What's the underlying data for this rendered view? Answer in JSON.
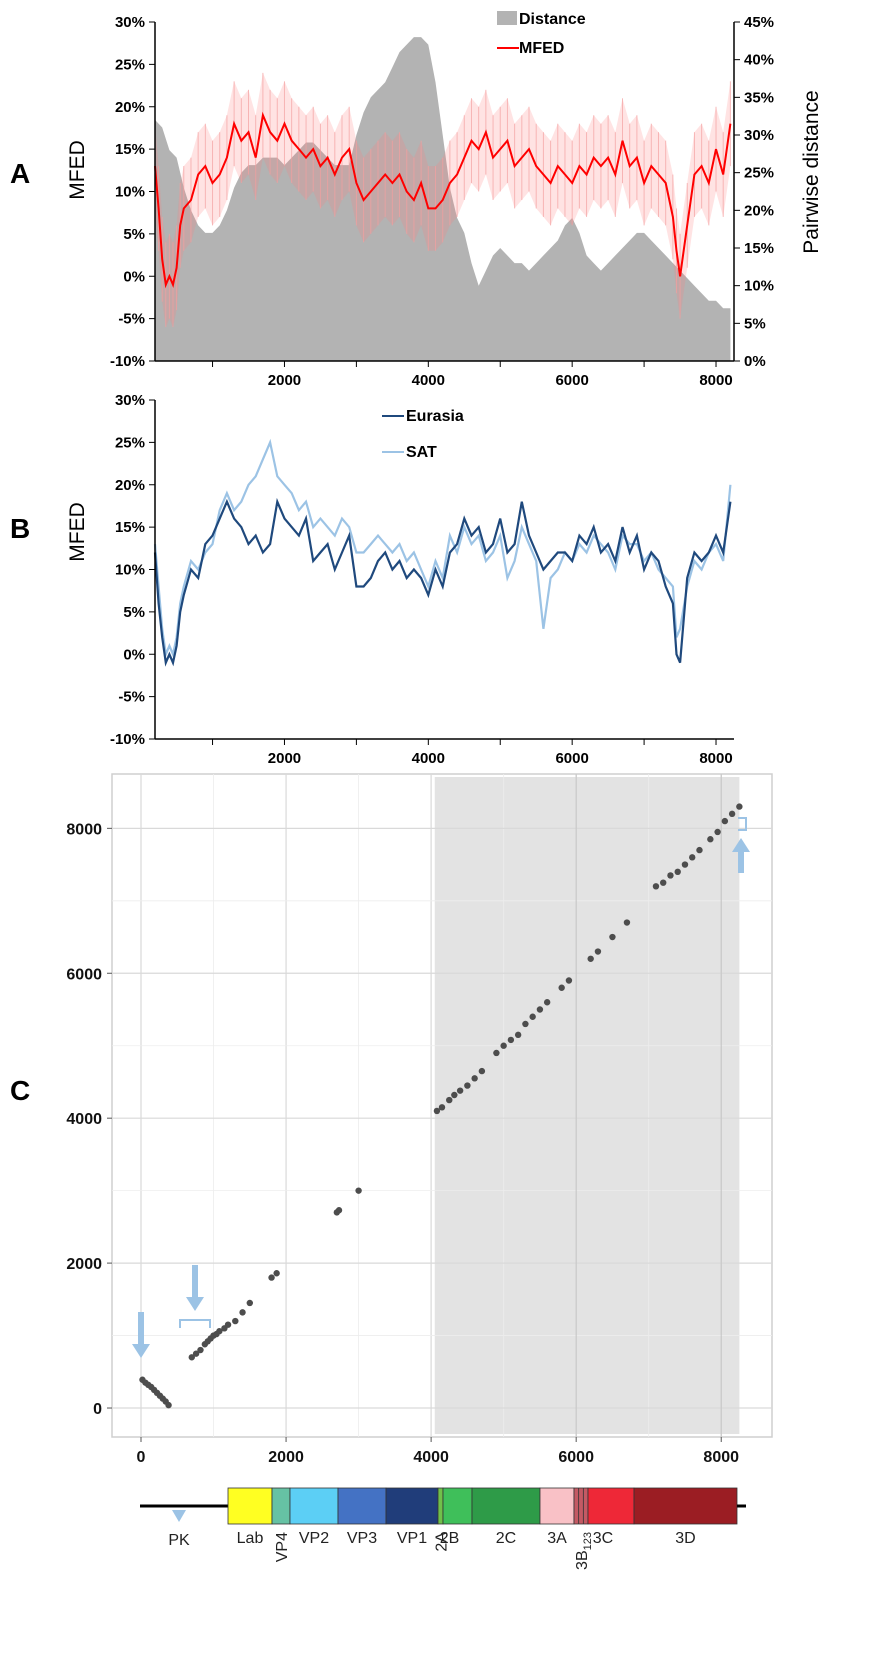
{
  "panels": {
    "a": "A",
    "b": "B",
    "c": "C"
  },
  "chart_data": [
    {
      "type": "area+line",
      "panel": "A",
      "ylabel_left": "MFED",
      "ylabel_right": "Pairwise distance",
      "ylim_left": [
        -10,
        30
      ],
      "ylim_right": [
        0,
        45
      ],
      "left_ticks": [
        "-10%",
        "-5%",
        "0%",
        "5%",
        "10%",
        "15%",
        "20%",
        "25%",
        "30%"
      ],
      "right_ticks": [
        "0%",
        "5%",
        "10%",
        "15%",
        "20%",
        "25%",
        "30%",
        "35%",
        "40%",
        "45%"
      ],
      "x_ticks": [
        "2000",
        "4000",
        "6000",
        "8000"
      ],
      "xlim": [
        200,
        8250
      ],
      "legend": [
        {
          "name": "Distance",
          "color": "#b3b3b3"
        },
        {
          "name": "MFED",
          "color": "#ff0000"
        }
      ],
      "series": [
        {
          "name": "Distance",
          "axis": "right",
          "color": "#b3b3b3",
          "x": [
            200,
            300,
            400,
            500,
            600,
            700,
            800,
            900,
            1000,
            1100,
            1200,
            1300,
            1400,
            1500,
            1600,
            1700,
            1800,
            1900,
            2000,
            2100,
            2200,
            2300,
            2400,
            2500,
            2600,
            2700,
            2800,
            2900,
            3000,
            3100,
            3200,
            3300,
            3400,
            3500,
            3600,
            3700,
            3800,
            3900,
            4000,
            4100,
            4200,
            4300,
            4400,
            4500,
            4600,
            4700,
            4800,
            4900,
            5000,
            5100,
            5200,
            5300,
            5400,
            5500,
            5600,
            5700,
            5800,
            5900,
            6000,
            6100,
            6200,
            6300,
            6400,
            6500,
            6600,
            6700,
            6800,
            6900,
            7000,
            7100,
            7200,
            7300,
            7400,
            7500,
            7600,
            7700,
            7800,
            7900,
            8000,
            8100,
            8200
          ],
          "values": [
            32,
            31,
            28,
            27,
            23,
            20,
            18,
            17,
            17,
            18,
            20,
            23,
            25,
            26,
            26,
            27,
            27,
            27,
            26,
            27,
            28,
            29,
            29,
            28,
            27,
            26,
            26,
            26,
            30,
            33,
            35,
            36,
            37,
            39,
            41,
            42,
            43,
            43,
            42,
            37,
            30,
            23,
            19,
            17,
            13,
            10,
            12,
            14,
            15,
            14,
            13,
            13,
            12,
            13,
            14,
            15,
            16,
            18,
            19,
            17,
            14,
            13,
            12,
            13,
            14,
            15,
            16,
            17,
            17,
            16,
            15,
            14,
            13,
            12,
            11,
            10,
            9,
            8,
            8,
            7,
            7
          ]
        },
        {
          "name": "MFED",
          "axis": "left",
          "color": "#ff0000",
          "x": [
            200,
            250,
            300,
            350,
            400,
            450,
            500,
            550,
            600,
            700,
            800,
            900,
            1000,
            1100,
            1200,
            1300,
            1400,
            1500,
            1600,
            1700,
            1800,
            1900,
            2000,
            2100,
            2200,
            2300,
            2400,
            2500,
            2600,
            2700,
            2800,
            2900,
            3000,
            3100,
            3200,
            3300,
            3400,
            3500,
            3600,
            3700,
            3800,
            3900,
            4000,
            4100,
            4200,
            4300,
            4400,
            4500,
            4600,
            4700,
            4800,
            4900,
            5000,
            5100,
            5200,
            5300,
            5400,
            5500,
            5600,
            5700,
            5800,
            5900,
            6000,
            6100,
            6200,
            6300,
            6400,
            6500,
            6600,
            6700,
            6800,
            6900,
            7000,
            7100,
            7200,
            7300,
            7400,
            7450,
            7500,
            7600,
            7700,
            7800,
            7900,
            8000,
            8100,
            8200
          ],
          "values": [
            13,
            8,
            2,
            -1,
            0,
            -1,
            1,
            6,
            8,
            9,
            12,
            13,
            11,
            12,
            14,
            18,
            16,
            17,
            14,
            19,
            17,
            16,
            18,
            16,
            15,
            14,
            15,
            13,
            14,
            12,
            14,
            15,
            11,
            9,
            10,
            11,
            12,
            11,
            12,
            10,
            9,
            11,
            8,
            8,
            9,
            11,
            12,
            14,
            16,
            15,
            17,
            14,
            15,
            16,
            13,
            14,
            15,
            13,
            12,
            11,
            13,
            12,
            11,
            13,
            12,
            14,
            13,
            14,
            12,
            16,
            13,
            14,
            11,
            13,
            12,
            11,
            7,
            3,
            0,
            6,
            12,
            13,
            11,
            15,
            12,
            18
          ]
        }
      ]
    },
    {
      "type": "line",
      "panel": "B",
      "ylabel": "MFED",
      "ylim": [
        -10,
        30
      ],
      "y_ticks": [
        "-10%",
        "-5%",
        "0%",
        "5%",
        "10%",
        "15%",
        "20%",
        "25%",
        "30%"
      ],
      "x_ticks": [
        "2000",
        "4000",
        "6000",
        "8000"
      ],
      "xlim": [
        200,
        8250
      ],
      "series": [
        {
          "name": "Eurasia",
          "color": "#1f497d",
          "x": [
            200,
            250,
            300,
            350,
            400,
            450,
            500,
            550,
            600,
            700,
            800,
            900,
            1000,
            1100,
            1200,
            1300,
            1400,
            1500,
            1600,
            1700,
            1800,
            1900,
            2000,
            2100,
            2200,
            2300,
            2400,
            2500,
            2600,
            2700,
            2800,
            2900,
            3000,
            3100,
            3200,
            3300,
            3400,
            3500,
            3600,
            3700,
            3800,
            3900,
            4000,
            4100,
            4200,
            4300,
            4400,
            4500,
            4600,
            4700,
            4800,
            4900,
            5000,
            5100,
            5200,
            5300,
            5400,
            5500,
            5600,
            5700,
            5800,
            5900,
            6000,
            6100,
            6200,
            6300,
            6400,
            6500,
            6600,
            6700,
            6800,
            6900,
            7000,
            7100,
            7200,
            7300,
            7400,
            7450,
            7500,
            7600,
            7700,
            7800,
            7900,
            8000,
            8100,
            8200
          ],
          "values": [
            12,
            6,
            2,
            -1,
            0,
            -1,
            1,
            5,
            7,
            10,
            9,
            13,
            14,
            16,
            18,
            16,
            15,
            13,
            14,
            12,
            13,
            18,
            16,
            15,
            14,
            16,
            11,
            12,
            13,
            10,
            12,
            14,
            8,
            8,
            9,
            11,
            12,
            10,
            11,
            9,
            10,
            9,
            7,
            10,
            8,
            12,
            13,
            16,
            14,
            15,
            12,
            13,
            16,
            12,
            13,
            18,
            14,
            12,
            10,
            11,
            12,
            12,
            11,
            14,
            13,
            15,
            12,
            13,
            11,
            15,
            12,
            14,
            10,
            12,
            11,
            8,
            6,
            0,
            -1,
            9,
            12,
            11,
            12,
            14,
            12,
            18
          ]
        },
        {
          "name": "SAT",
          "color": "#9cc3e5",
          "x": [
            200,
            250,
            300,
            350,
            400,
            450,
            500,
            550,
            600,
            700,
            800,
            900,
            1000,
            1100,
            1200,
            1300,
            1400,
            1500,
            1600,
            1700,
            1800,
            1900,
            2000,
            2100,
            2200,
            2300,
            2400,
            2500,
            2600,
            2700,
            2800,
            2900,
            3000,
            3100,
            3200,
            3300,
            3400,
            3500,
            3600,
            3700,
            3800,
            3900,
            4000,
            4100,
            4200,
            4300,
            4400,
            4500,
            4600,
            4700,
            4800,
            4900,
            5000,
            5100,
            5200,
            5300,
            5400,
            5500,
            5600,
            5700,
            5800,
            5900,
            6000,
            6100,
            6200,
            6300,
            6400,
            6500,
            6600,
            6700,
            6800,
            6900,
            7000,
            7100,
            7200,
            7300,
            7400,
            7450,
            7500,
            7600,
            7700,
            7800,
            7900,
            8000,
            8100,
            8200
          ],
          "values": [
            13,
            8,
            3,
            0,
            1,
            0,
            2,
            6,
            8,
            11,
            10,
            12,
            13,
            17,
            19,
            17,
            18,
            20,
            21,
            23,
            25,
            21,
            20,
            19,
            17,
            18,
            15,
            16,
            15,
            14,
            16,
            15,
            12,
            12,
            13,
            14,
            13,
            12,
            13,
            11,
            12,
            10,
            8,
            11,
            9,
            14,
            12,
            15,
            13,
            14,
            11,
            12,
            14,
            9,
            11,
            15,
            13,
            11,
            3,
            9,
            10,
            12,
            11,
            13,
            12,
            14,
            13,
            12,
            10,
            14,
            13,
            13,
            11,
            12,
            10,
            9,
            8,
            2,
            3,
            8,
            11,
            10,
            12,
            13,
            11,
            20
          ]
        }
      ]
    },
    {
      "type": "scatter",
      "panel": "C",
      "xlim": [
        -400,
        8700
      ],
      "ylim": [
        -400,
        8750
      ],
      "x_ticks": [
        "0",
        "2000",
        "4000",
        "6000",
        "8000"
      ],
      "y_ticks": [
        "0",
        "2000",
        "4000",
        "6000",
        "8000"
      ],
      "shaded_region": [
        4050,
        8250
      ],
      "points": [
        [
          20,
          390
        ],
        [
          60,
          350
        ],
        [
          100,
          320
        ],
        [
          140,
          290
        ],
        [
          180,
          250
        ],
        [
          220,
          210
        ],
        [
          260,
          170
        ],
        [
          300,
          130
        ],
        [
          340,
          90
        ],
        [
          380,
          40
        ],
        [
          700,
          700
        ],
        [
          760,
          750
        ],
        [
          820,
          800
        ],
        [
          880,
          880
        ],
        [
          920,
          920
        ],
        [
          960,
          960
        ],
        [
          1000,
          1000
        ],
        [
          1040,
          1020
        ],
        [
          1080,
          1060
        ],
        [
          1150,
          1100
        ],
        [
          1200,
          1150
        ],
        [
          1300,
          1200
        ],
        [
          1400,
          1320
        ],
        [
          1500,
          1450
        ],
        [
          1800,
          1800
        ],
        [
          1870,
          1860
        ],
        [
          2700,
          2700
        ],
        [
          2730,
          2730
        ],
        [
          3000,
          3000
        ],
        [
          4080,
          4100
        ],
        [
          4150,
          4150
        ],
        [
          4250,
          4250
        ],
        [
          4320,
          4320
        ],
        [
          4400,
          4380
        ],
        [
          4500,
          4450
        ],
        [
          4600,
          4550
        ],
        [
          4700,
          4650
        ],
        [
          4900,
          4900
        ],
        [
          5000,
          5000
        ],
        [
          5100,
          5080
        ],
        [
          5200,
          5150
        ],
        [
          5300,
          5300
        ],
        [
          5400,
          5400
        ],
        [
          5500,
          5500
        ],
        [
          5600,
          5600
        ],
        [
          5800,
          5800
        ],
        [
          5900,
          5900
        ],
        [
          6200,
          6200
        ],
        [
          6300,
          6300
        ],
        [
          6500,
          6500
        ],
        [
          6700,
          6700
        ],
        [
          7100,
          7200
        ],
        [
          7200,
          7250
        ],
        [
          7300,
          7350
        ],
        [
          7400,
          7400
        ],
        [
          7500,
          7500
        ],
        [
          7600,
          7600
        ],
        [
          7700,
          7700
        ],
        [
          7850,
          7850
        ],
        [
          7950,
          7950
        ],
        [
          8050,
          8100
        ],
        [
          8150,
          8200
        ],
        [
          8250,
          8300
        ]
      ]
    }
  ],
  "genome": {
    "pk_label": "PK",
    "segments": [
      {
        "label": "Lab",
        "start": 1,
        "end": 2,
        "color": "#ffff22"
      },
      {
        "label": "VP4",
        "start": 2,
        "end": 3,
        "color": "#66c2a4"
      },
      {
        "label": "VP2",
        "start": 3,
        "end": 4,
        "color": "#5ccff5"
      },
      {
        "label": "VP3",
        "start": 4,
        "end": 5,
        "color": "#4472c4"
      },
      {
        "label": "VP1",
        "start": 5,
        "end": 6,
        "color": "#203d7a"
      },
      {
        "label": "2A",
        "start": 6,
        "end": 7,
        "color": "#70c04a"
      },
      {
        "label": "2B",
        "start": 7,
        "end": 8,
        "color": "#3fbf5a"
      },
      {
        "label": "2C",
        "start": 8,
        "end": 9,
        "color": "#2e9b48"
      },
      {
        "label": "3A",
        "start": 9,
        "end": 10,
        "color": "#f9c1c6"
      },
      {
        "label": "3B",
        "sub": "123",
        "start": 10,
        "end": 11,
        "color": "#c45a64"
      },
      {
        "label": "3C",
        "start": 11,
        "end": 12,
        "color": "#ee2837"
      },
      {
        "label": "3D",
        "start": 12,
        "end": 13,
        "color": "#9b1d23"
      }
    ]
  }
}
